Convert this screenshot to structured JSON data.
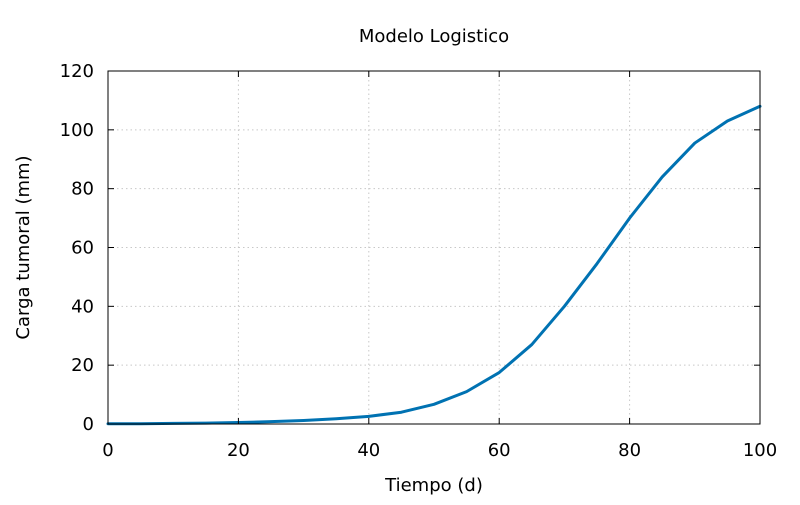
{
  "chart_data": {
    "type": "line",
    "title": "Modelo Logistico",
    "xlabel": "Tiempo (d)",
    "ylabel": "Carga tumoral (mm)",
    "xlim": [
      0,
      100
    ],
    "ylim": [
      0,
      120
    ],
    "xticks": [
      0,
      20,
      40,
      60,
      80,
      100
    ],
    "yticks": [
      0,
      20,
      40,
      60,
      80,
      100,
      120
    ],
    "grid": true,
    "series": [
      {
        "color": "#0072b2",
        "x": [
          0,
          5,
          10,
          15,
          20,
          25,
          30,
          35,
          40,
          45,
          50,
          55,
          60,
          65,
          70,
          75,
          80,
          85,
          90,
          95,
          100
        ],
        "y": [
          0.1,
          0.1,
          0.2,
          0.3,
          0.5,
          0.8,
          1.2,
          1.8,
          2.6,
          4.0,
          6.7,
          11.0,
          17.5,
          27.0,
          40.0,
          54.5,
          70.0,
          84.0,
          95.5,
          103.0,
          108.0
        ]
      }
    ]
  }
}
